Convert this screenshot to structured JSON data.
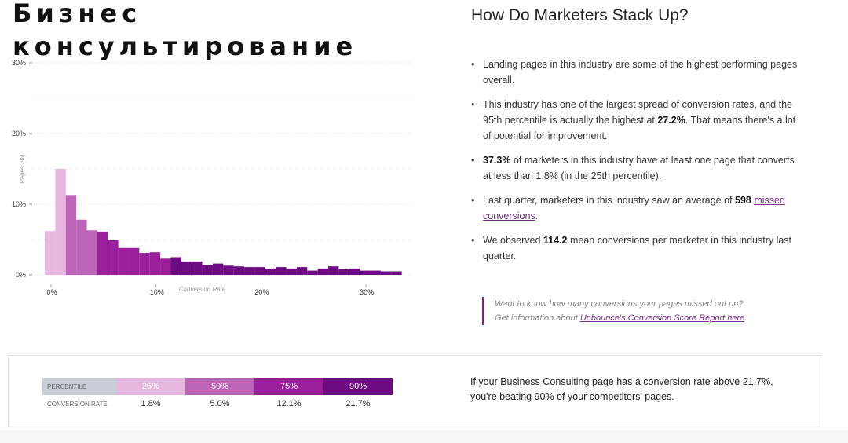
{
  "overlay": {
    "line1": "Бизнес",
    "line2": "консультирование"
  },
  "right": {
    "title": "How Do Marketers Stack Up?",
    "bullets": {
      "b1": "Landing pages in this industry are some of the highest performing pages overall.",
      "b2_pre": "This industry has one of the largest spread of conversion rates, and the 95th percentile is actually the highest at ",
      "b2_bold": "27.2%",
      "b2_post": ". That means there's a lot of potential for improvement.",
      "b3_bold": "37.3%",
      "b3_post": " of marketers in this industry have at least one page that converts at less than 1.8% (in the 25th percentile).",
      "b4_pre": "Last quarter, marketers in this industry saw an average of ",
      "b4_bold": "598",
      "b4_link": "missed conversions",
      "b4_post": ".",
      "b5_pre": "We observed ",
      "b5_bold": "114.2",
      "b5_post": " mean conversions per marketer in this industry last quarter."
    },
    "quote_pre": "Want to know how many conversions your pages missed out on? Get information about ",
    "quote_link": "Unbounce's Conversion Score Report here",
    "quote_post": "."
  },
  "percentile_table": {
    "header_label": "PERCENTILE",
    "row_label": "CONVERSION RATE",
    "percentiles": [
      "25%",
      "50%",
      "75%",
      "90%"
    ],
    "rates": [
      "1.8%",
      "5.0%",
      "12.1%",
      "21.7%"
    ],
    "colors": [
      "#e8b7e0",
      "#bc64b8",
      "#9a1f9a",
      "#6d0b82"
    ]
  },
  "verdict": "If your Business Consulting page has a conversion rate above 21.7%, you're beating 90% of your competitors' pages.",
  "chart_data": {
    "type": "bar",
    "xlabel": "Conversion Rate",
    "ylabel": "Pages (%)",
    "xlim": [
      0,
      35
    ],
    "ylim": [
      0,
      30
    ],
    "x_ticks": [
      "0%",
      "10%",
      "20%",
      "30%"
    ],
    "y_ticks": [
      "0%",
      "10%",
      "20%",
      "30%"
    ],
    "grid": true,
    "bin_width": 1,
    "bin_starts": [
      0,
      1,
      2,
      3,
      4,
      5,
      6,
      7,
      8,
      9,
      10,
      11,
      12,
      13,
      14,
      15,
      16,
      17,
      18,
      19,
      20,
      21,
      22,
      23,
      24,
      25,
      26,
      27,
      28,
      29,
      30,
      31,
      32,
      33
    ],
    "values": [
      6.2,
      15.0,
      11.3,
      7.8,
      6.3,
      6.1,
      4.9,
      3.8,
      3.8,
      3.1,
      3.2,
      2.3,
      2.5,
      1.9,
      1.9,
      1.4,
      1.6,
      1.3,
      1.2,
      1.1,
      1.1,
      0.9,
      1.1,
      0.9,
      1.1,
      0.6,
      0.9,
      1.2,
      0.8,
      0.9,
      0.6,
      0.6,
      0.5,
      0.5
    ],
    "quartile_colors": [
      "#e8b7e0",
      "#bc64b8",
      "#9a1f9a",
      "#6d0b82"
    ],
    "quartile_bin_ranges": [
      [
        0,
        2
      ],
      [
        2,
        5
      ],
      [
        5,
        12
      ],
      [
        12,
        34
      ]
    ],
    "colors": {
      "grid": "#dddddd",
      "axis_text": "#333333",
      "label_text": "#9a9a9a"
    }
  }
}
